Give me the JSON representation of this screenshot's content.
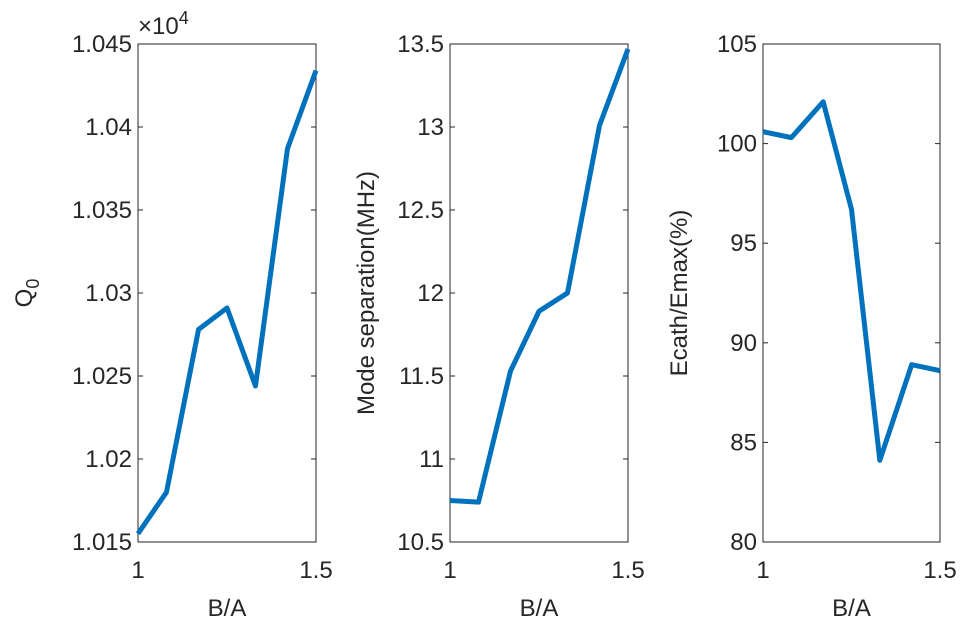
{
  "chart_data": [
    {
      "type": "line",
      "x": [
        1,
        1.08,
        1.17,
        1.25,
        1.33,
        1.42,
        1.5
      ],
      "values": [
        1.0155,
        1.018,
        1.0278,
        1.0291,
        1.0244,
        1.0387,
        1.0434
      ],
      "color": "#0072BD",
      "xlabel": "B/A",
      "ylabel": "Q",
      "ylabel_subscript": "0",
      "multiplier": "×10",
      "multiplier_exponent": "4",
      "xlim": [
        1,
        1.5
      ],
      "xticks": [
        1,
        1.5
      ],
      "ylim": [
        1.015,
        1.045
      ],
      "yticks": [
        1.015,
        1.02,
        1.025,
        1.03,
        1.035,
        1.04,
        1.045
      ]
    },
    {
      "type": "line",
      "x": [
        1,
        1.08,
        1.17,
        1.25,
        1.33,
        1.42,
        1.5
      ],
      "values": [
        10.75,
        10.74,
        11.53,
        11.89,
        12.0,
        13.01,
        13.47
      ],
      "color": "#0072BD",
      "xlabel": "B/A",
      "ylabel": "Mode separation(MHz)",
      "xlim": [
        1,
        1.5
      ],
      "xticks": [
        1,
        1.5
      ],
      "ylim": [
        10.5,
        13.5
      ],
      "yticks": [
        10.5,
        11,
        11.5,
        12,
        12.5,
        13,
        13.5
      ]
    },
    {
      "type": "line",
      "x": [
        1,
        1.08,
        1.17,
        1.25,
        1.33,
        1.42,
        1.5
      ],
      "values": [
        100.6,
        100.3,
        102.1,
        96.7,
        84.1,
        88.9,
        88.6
      ],
      "color": "#0072BD",
      "xlabel": "B/A",
      "ylabel": "Ecath/Emax(%)",
      "xlim": [
        1,
        1.5
      ],
      "xticks": [
        1,
        1.5
      ],
      "ylim": [
        80,
        105
      ],
      "yticks": [
        80,
        85,
        90,
        95,
        100,
        105
      ]
    }
  ]
}
